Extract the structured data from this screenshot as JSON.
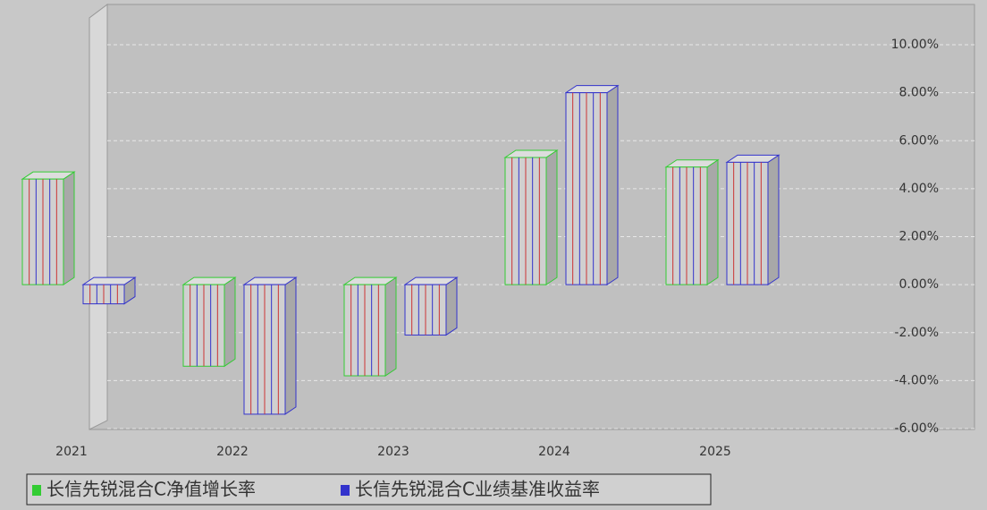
{
  "chart_data": {
    "type": "bar",
    "categories": [
      "2021",
      "2022",
      "2023",
      "2024",
      "2025"
    ],
    "series": [
      {
        "name": "长信先锐混合C净值增长率",
        "color": "#33cc33",
        "values": [
          4.4,
          -3.4,
          -3.8,
          5.3,
          4.9
        ]
      },
      {
        "name": "长信先锐混合C业绩基准收益率",
        "color": "#3333cc",
        "values": [
          -0.8,
          -5.4,
          -2.1,
          8.0,
          5.1
        ]
      }
    ],
    "ylim": [
      -6,
      10
    ],
    "yticks": [
      {
        "value": -6,
        "label": "-6.00%"
      },
      {
        "value": -4,
        "label": "-4.00%"
      },
      {
        "value": -2,
        "label": "-2.00%"
      },
      {
        "value": 0,
        "label": "0.00%"
      },
      {
        "value": 2,
        "label": "2.00%"
      },
      {
        "value": 4,
        "label": "4.00%"
      },
      {
        "value": 6,
        "label": "6.00%"
      },
      {
        "value": 8,
        "label": "8.00%"
      },
      {
        "value": 10,
        "label": "10.00%"
      }
    ],
    "grid": true
  }
}
